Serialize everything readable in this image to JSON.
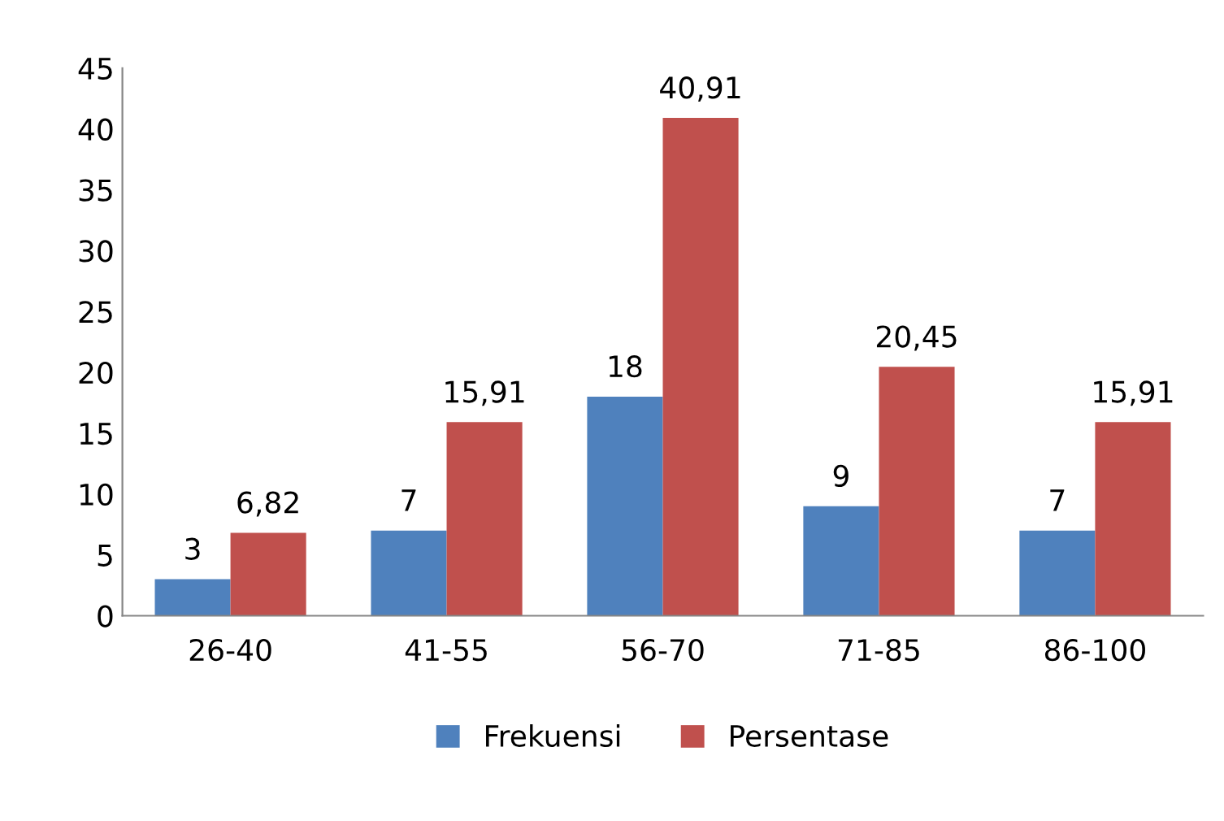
{
  "chart_data": {
    "type": "bar",
    "categories": [
      "26-40",
      "41-55",
      "56-70",
      "71-85",
      "86-100"
    ],
    "series": [
      {
        "name": "Frekuensi",
        "color": "#4f81bd",
        "values": [
          3,
          7,
          18,
          9,
          7
        ],
        "value_labels": [
          "3",
          "7",
          "18",
          "9",
          "7"
        ]
      },
      {
        "name": "Persentase",
        "color": "#c0504d",
        "values": [
          6.82,
          15.91,
          40.91,
          20.45,
          15.91
        ],
        "value_labels": [
          "6,82",
          "15,91",
          "40,91",
          "20,45",
          "15,91"
        ]
      }
    ],
    "ylim": [
      0,
      45
    ],
    "yticks": [
      0,
      5,
      10,
      15,
      20,
      25,
      30,
      35,
      40,
      45
    ],
    "grid": false,
    "legend": "bottom"
  }
}
